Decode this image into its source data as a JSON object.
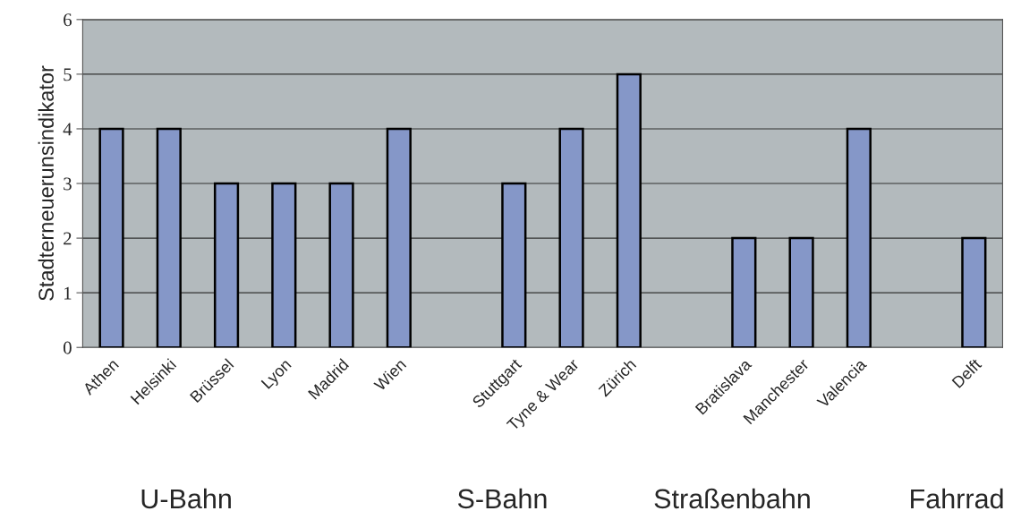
{
  "chart_data": {
    "type": "bar",
    "ylabel": "Stadterneuerunsindikator",
    "categories": [
      "Athen",
      "Helsinki",
      "Brüssel",
      "Lyon",
      "Madrid",
      "Wien",
      null,
      "Stuttgart",
      "Tyne & Wear",
      "Zürich",
      null,
      "Bratislava",
      "Manchester",
      "Valencia",
      null,
      "Delft"
    ],
    "values": [
      4,
      4,
      3,
      3,
      3,
      4,
      null,
      3,
      4,
      5,
      null,
      2,
      2,
      4,
      null,
      2
    ],
    "color": "#8597c8",
    "ylim": [
      0,
      6
    ],
    "yticks": [
      0,
      1,
      2,
      3,
      4,
      5,
      6
    ],
    "grid": "y",
    "annotations": [
      "U-Bahn",
      "S-Bahn",
      "Straßenbahn",
      "Fahrrad"
    ]
  }
}
